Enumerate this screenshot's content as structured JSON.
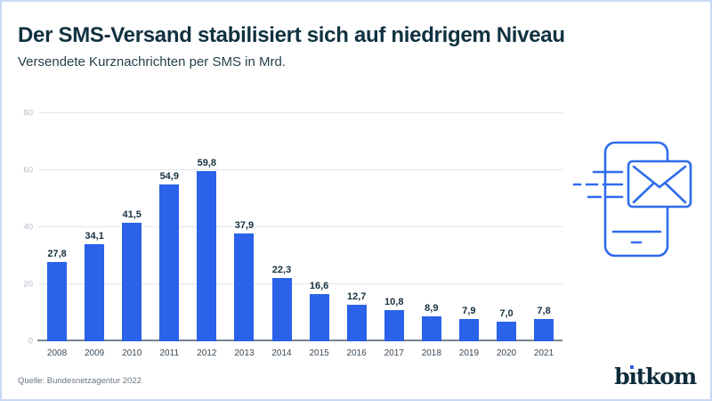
{
  "header": {
    "title": "Der SMS-Versand stabilisiert sich auf niedrigem Niveau",
    "subtitle": "Versendete Kurznachrichten per SMS in Mrd."
  },
  "chart_data": {
    "type": "bar",
    "title": "Der SMS-Versand stabilisiert sich auf niedrigem Niveau",
    "subtitle": "Versendete Kurznachrichten per SMS in Mrd.",
    "categories": [
      "2008",
      "2009",
      "2010",
      "2011",
      "2012",
      "2013",
      "2014",
      "2015",
      "2016",
      "2017",
      "2018",
      "2019",
      "2020",
      "2021"
    ],
    "values": [
      27.8,
      34.1,
      41.5,
      54.9,
      59.8,
      37.9,
      22.3,
      16.6,
      12.7,
      10.8,
      8.9,
      7.9,
      7.0,
      7.8
    ],
    "value_labels": [
      "27,8",
      "34,1",
      "41,5",
      "54,9",
      "59,8",
      "37,9",
      "22,3",
      "16,6",
      "12,7",
      "10,8",
      "8,9",
      "7,9",
      "7,0",
      "7,8"
    ],
    "xlabel": "",
    "ylabel": "",
    "ylim": [
      0,
      80
    ],
    "yticks": [
      0,
      20,
      40,
      60,
      80
    ],
    "grid": true,
    "legend": false,
    "bar_color": "#2a62e9"
  },
  "footer": {
    "source": "Quelle: Bundesnetzagentur 2022",
    "logo_text": "bitkom"
  },
  "icons": {
    "sms_phone": "smartphone-with-envelope-and-speed-lines"
  },
  "colors": {
    "accent_blue": "#2a62e9",
    "icon_blue": "#2f6bee",
    "title_dark": "#103140",
    "grid_line": "#e4e7eb",
    "axis_line": "#79838d",
    "ytick_label": "#b6bcc6",
    "year_label": "#3a4a58",
    "value_label": "#16303f",
    "source_text": "#6b7580",
    "border": "#c9d8f3"
  }
}
